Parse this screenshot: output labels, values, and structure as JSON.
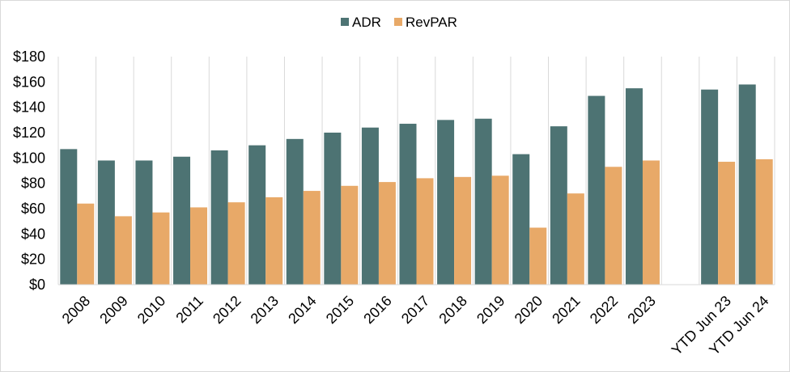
{
  "chart_data": {
    "type": "bar",
    "categories": [
      "2008",
      "2009",
      "2010",
      "2011",
      "2012",
      "2013",
      "2014",
      "2015",
      "2016",
      "2017",
      "2018",
      "2019",
      "2020",
      "2021",
      "2022",
      "2023",
      "",
      "YTD Jun 23",
      "YTD Jun 24"
    ],
    "series": [
      {
        "name": "ADR",
        "color": "#4d7373",
        "values": [
          107,
          98,
          98,
          101,
          106,
          110,
          115,
          120,
          124,
          127,
          130,
          131,
          103,
          125,
          149,
          155,
          null,
          154,
          158
        ]
      },
      {
        "name": "RevPAR",
        "color": "#e8a968",
        "values": [
          64,
          54,
          57,
          61,
          65,
          69,
          74,
          78,
          81,
          84,
          85,
          86,
          45,
          72,
          93,
          98,
          null,
          97,
          99
        ]
      }
    ],
    "yticks": [
      "$0",
      "$20",
      "$40",
      "$60",
      "$80",
      "$100",
      "$120",
      "$140",
      "$160",
      "$180"
    ],
    "ylim": [
      0,
      180
    ],
    "grid": true,
    "legend_position": "top-center"
  }
}
